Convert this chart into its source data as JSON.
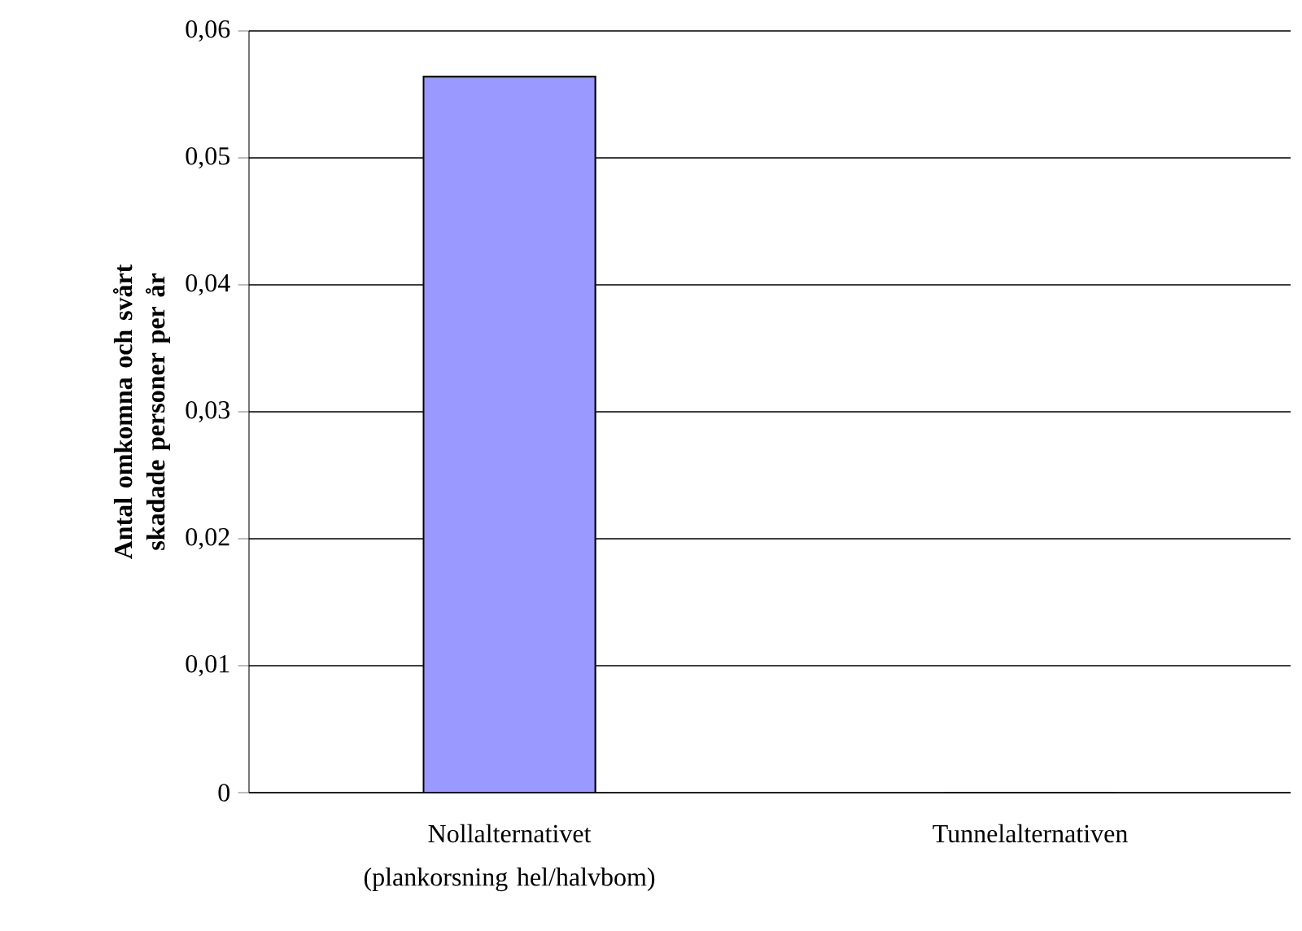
{
  "chart_data": {
    "type": "bar",
    "ylabel": "Antal omkomna och svårt skadade personer per år",
    "categories": [
      "Nollalternativet (plankorsning hel/halvbom)",
      "Tunnelalternativen"
    ],
    "values": [
      0.0564,
      0
    ],
    "color": "#9999ff",
    "ylim": [
      0,
      0.06
    ],
    "yticks": [
      {
        "value": 0,
        "label": "0"
      },
      {
        "value": 0.01,
        "label": "0,01"
      },
      {
        "value": 0.02,
        "label": "0,02"
      },
      {
        "value": 0.03,
        "label": "0,03"
      },
      {
        "value": 0.04,
        "label": "0,04"
      },
      {
        "value": 0.05,
        "label": "0,05"
      },
      {
        "value": 0.06,
        "label": "0,06"
      }
    ],
    "grid": "y"
  }
}
